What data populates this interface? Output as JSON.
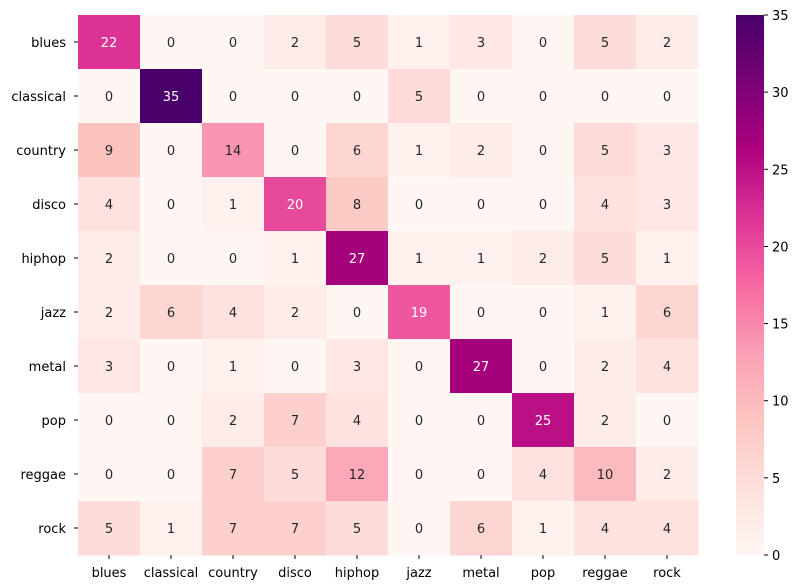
{
  "chart_data": {
    "type": "heatmap",
    "title": "",
    "xlabel": "",
    "ylabel": "",
    "x_categories": [
      "blues",
      "classical",
      "country",
      "disco",
      "hiphop",
      "jazz",
      "metal",
      "pop",
      "reggae",
      "rock"
    ],
    "y_categories": [
      "blues",
      "classical",
      "country",
      "disco",
      "hiphop",
      "jazz",
      "metal",
      "pop",
      "reggae",
      "rock"
    ],
    "values": [
      [
        22,
        0,
        0,
        2,
        5,
        1,
        3,
        0,
        5,
        2
      ],
      [
        0,
        35,
        0,
        0,
        0,
        5,
        0,
        0,
        0,
        0
      ],
      [
        9,
        0,
        14,
        0,
        6,
        1,
        2,
        0,
        5,
        3
      ],
      [
        4,
        0,
        1,
        20,
        8,
        0,
        0,
        0,
        4,
        3
      ],
      [
        2,
        0,
        0,
        1,
        27,
        1,
        1,
        2,
        5,
        1
      ],
      [
        2,
        6,
        4,
        2,
        0,
        19,
        0,
        0,
        1,
        6
      ],
      [
        3,
        0,
        1,
        0,
        3,
        0,
        27,
        0,
        2,
        4
      ],
      [
        0,
        0,
        2,
        7,
        4,
        0,
        0,
        25,
        2,
        0
      ],
      [
        0,
        0,
        7,
        5,
        12,
        0,
        0,
        4,
        10,
        2
      ],
      [
        5,
        1,
        7,
        7,
        5,
        0,
        6,
        1,
        4,
        4
      ]
    ],
    "vmin": 0,
    "vmax": 35,
    "colormap": "RdPu",
    "colorbar_ticks": [
      0,
      5,
      10,
      15,
      20,
      25,
      30,
      35
    ],
    "annotations": true,
    "grid": false
  }
}
